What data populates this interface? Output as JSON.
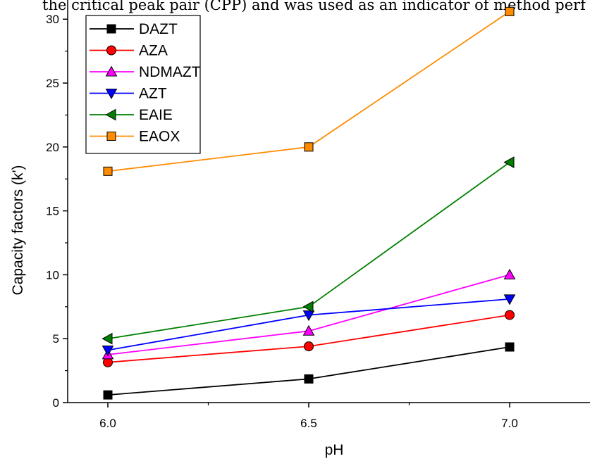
{
  "caption": "the critical peak pair (CPP) and was used as an indicator of method perf",
  "chart_data": {
    "type": "line",
    "x": [
      6.0,
      6.5,
      7.0
    ],
    "xticks": [
      "6.0",
      "6.5",
      "7.0"
    ],
    "xlabel": "pH",
    "ylabel": "Capacity factors (k')",
    "xlim": [
      5.9,
      7.2
    ],
    "ylim": [
      0,
      31.5
    ],
    "yticks": [
      0,
      5,
      10,
      15,
      20,
      25,
      30
    ],
    "legend_position": "top-left",
    "grid": false,
    "series": [
      {
        "name": "DAZT",
        "values": [
          0.6,
          1.85,
          4.35
        ],
        "color": "#000000",
        "marker": "square"
      },
      {
        "name": "AZA",
        "values": [
          3.15,
          4.4,
          6.85
        ],
        "color": "#ff0000",
        "marker": "circle"
      },
      {
        "name": "NDMAZT",
        "values": [
          3.75,
          5.6,
          10.0
        ],
        "color": "#ff00ff",
        "marker": "triangle-up"
      },
      {
        "name": "AZT",
        "values": [
          4.1,
          6.85,
          8.1
        ],
        "color": "#0000ff",
        "marker": "triangle-down"
      },
      {
        "name": "EAIE",
        "values": [
          5.0,
          7.5,
          18.8
        ],
        "color": "#008000",
        "marker": "triangle-left"
      },
      {
        "name": "EAOX",
        "values": [
          18.1,
          20.0,
          30.6
        ],
        "color": "#ff8c00",
        "marker": "square"
      }
    ]
  }
}
